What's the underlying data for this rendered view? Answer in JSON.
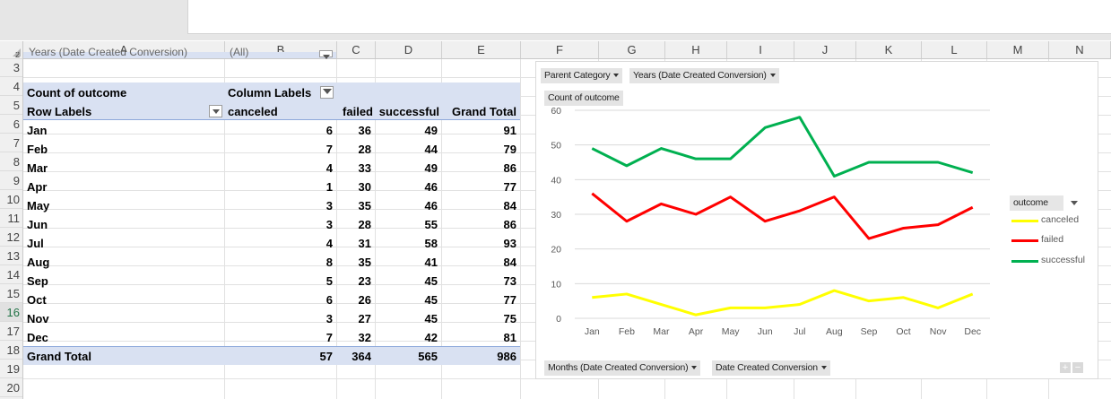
{
  "columns": [
    "A",
    "B",
    "C",
    "D",
    "E",
    "F",
    "G",
    "H",
    "I",
    "J",
    "K",
    "L",
    "M",
    "N"
  ],
  "rows": [
    "3",
    "4",
    "5",
    "6",
    "7",
    "8",
    "9",
    "10",
    "11",
    "12",
    "13",
    "14",
    "15",
    "16",
    "17",
    "18",
    "19",
    "20"
  ],
  "partial_row": "2",
  "selected_row": "16",
  "pivot": {
    "filter_label_partial": "Years (Date Created Conversion)",
    "filter_value_partial": "(All)",
    "values_header": "Count of outcome",
    "column_labels": "Column Labels",
    "row_labels": "Row Labels",
    "col_headers": [
      "canceled",
      "failed",
      "successful",
      "Grand Total"
    ],
    "data": [
      {
        "label": "Jan",
        "v": [
          "6",
          "36",
          "49",
          "91"
        ]
      },
      {
        "label": "Feb",
        "v": [
          "7",
          "28",
          "44",
          "79"
        ]
      },
      {
        "label": "Mar",
        "v": [
          "4",
          "33",
          "49",
          "86"
        ]
      },
      {
        "label": "Apr",
        "v": [
          "1",
          "30",
          "46",
          "77"
        ]
      },
      {
        "label": "May",
        "v": [
          "3",
          "35",
          "46",
          "84"
        ]
      },
      {
        "label": "Jun",
        "v": [
          "3",
          "28",
          "55",
          "86"
        ]
      },
      {
        "label": "Jul",
        "v": [
          "4",
          "31",
          "58",
          "93"
        ]
      },
      {
        "label": "Aug",
        "v": [
          "8",
          "35",
          "41",
          "84"
        ]
      },
      {
        "label": "Sep",
        "v": [
          "5",
          "23",
          "45",
          "73"
        ]
      },
      {
        "label": "Oct",
        "v": [
          "6",
          "26",
          "45",
          "77"
        ]
      },
      {
        "label": "Nov",
        "v": [
          "3",
          "27",
          "45",
          "75"
        ]
      },
      {
        "label": "Dec",
        "v": [
          "7",
          "32",
          "42",
          "81"
        ]
      }
    ],
    "grand_total": {
      "label": "Grand Total",
      "v": [
        "57",
        "364",
        "565",
        "986"
      ]
    }
  },
  "chart": {
    "filter_buttons": [
      "Parent Category",
      "Years (Date Created Conversion)"
    ],
    "value_button": "Count of outcome",
    "axis_buttons": [
      "Months (Date Created Conversion)",
      "Date Created Conversion"
    ],
    "legend_title": "outcome",
    "plus": "+",
    "minus": "−"
  },
  "chart_data": {
    "type": "line",
    "categories": [
      "Jan",
      "Feb",
      "Mar",
      "Apr",
      "May",
      "Jun",
      "Jul",
      "Aug",
      "Sep",
      "Oct",
      "Nov",
      "Dec"
    ],
    "series": [
      {
        "name": "canceled",
        "color": "#ffff00",
        "values": [
          6,
          7,
          4,
          1,
          3,
          3,
          4,
          8,
          5,
          6,
          3,
          7
        ]
      },
      {
        "name": "failed",
        "color": "#ff0000",
        "values": [
          36,
          28,
          33,
          30,
          35,
          28,
          31,
          35,
          23,
          26,
          27,
          32
        ]
      },
      {
        "name": "successful",
        "color": "#00b050",
        "values": [
          49,
          44,
          49,
          46,
          46,
          55,
          58,
          41,
          45,
          45,
          45,
          42
        ]
      }
    ],
    "ylim": [
      0,
      60
    ],
    "yticks": [
      0,
      10,
      20,
      30,
      40,
      50,
      60
    ],
    "grid": true,
    "legend_position": "right"
  }
}
